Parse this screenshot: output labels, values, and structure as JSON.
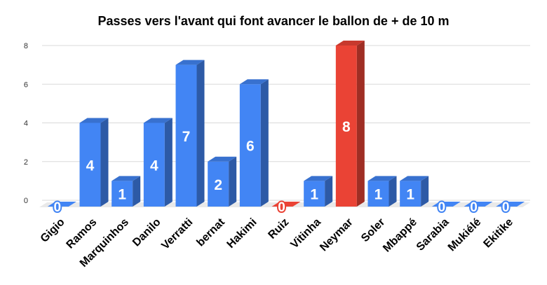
{
  "chart_data": {
    "type": "bar",
    "title": "Passes vers l'avant qui font avancer le ballon de + de 10 m",
    "categories": [
      "Gigio",
      "Ramos",
      "Marquinhos",
      "Danilo",
      "Verratti",
      "bernat",
      "Hakimi",
      "Ruiz",
      "Vitinha",
      "Neymar",
      "Soler",
      "Mbappé",
      "Sarabia",
      "Mukiélé",
      "Ekitike"
    ],
    "values": [
      0,
      4,
      1,
      4,
      7,
      2,
      6,
      0,
      1,
      8,
      1,
      1,
      0,
      0,
      0
    ],
    "ylim": [
      0,
      8
    ],
    "yticks": [
      0,
      2,
      4,
      6,
      8
    ],
    "colors": {
      "default": "#4285f4",
      "highlight": "#ea4335",
      "highlight_categories": [
        "Ruiz",
        "Neymar"
      ]
    },
    "data_labels": true,
    "grid": true,
    "legend": "none"
  }
}
